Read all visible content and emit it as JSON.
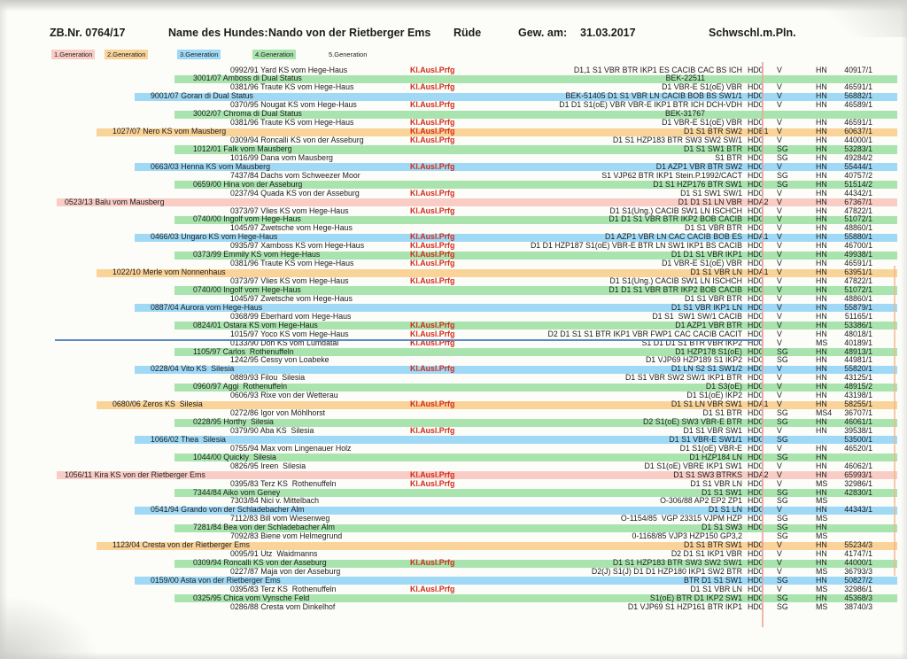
{
  "header": {
    "zb": "ZB.Nr. 0764/17",
    "name_label": "Name des Hundes:",
    "dog_name": "Nando von der Rietberger Ems",
    "sex": "Rüde",
    "dob_label": "Gew. am:",
    "dob": "31.03.2017",
    "right_label": "Schwschl.m.Pln."
  },
  "legend": {
    "items": [
      {
        "label": "1.Generation",
        "color": "#f9cdc6"
      },
      {
        "label": "2.Generation",
        "color": "#fad398"
      },
      {
        "label": "3.Generation",
        "color": "#9fd9f6"
      },
      {
        "label": "4.Generation",
        "color": "#a9e4af"
      },
      {
        "label": "5.Generation",
        "color": "none"
      }
    ]
  },
  "kl_label": "Kl.Ausl.Prfg",
  "colors": {
    "gen1": "#f9cdc6",
    "gen2": "#fad398",
    "gen3": "#9fd9f6",
    "gen4": "#a9e4af",
    "red_text": "#d42a18",
    "divider_blue": "#4a7cc0",
    "fold_pink": "#eba9a2"
  },
  "rows": [
    {
      "gen": 5,
      "name": "0992/91 Yard KS vom Hege-Haus",
      "kl": true,
      "title": "D1,1 S1 VBR BTR IKP1 ES CACIB CAC BS ICH",
      "hd": "HD0",
      "grade": "V",
      "org": "HN",
      "num": "40917/1"
    },
    {
      "gen": 4,
      "name": "3001/07 Amboss di Dual Status",
      "kl": false,
      "title": "BEK-22511",
      "pad": true,
      "hd": "",
      "grade": "",
      "org": "",
      "num": ""
    },
    {
      "gen": 5,
      "name": "0381/96 Traute KS vom Hege-Haus",
      "kl": true,
      "title": "D1 VBR-E S1(oE) VBR",
      "hd": "HD0",
      "grade": "V",
      "org": "HN",
      "num": "46591/1"
    },
    {
      "gen": 3,
      "name": "9001/07 Goran di Dual Status",
      "kl": false,
      "title": "BEK-51405 D1 S1 VBR LN CACIB BOB BS SW1/1",
      "hd": "HD0",
      "grade": "V",
      "org": "HN",
      "num": "56882/1"
    },
    {
      "gen": 5,
      "name": "0370/95 Nougat KS vom Hege-Haus",
      "kl": true,
      "title": "D1 D1 S1(oE) VBR VBR-E IKP1 BTR ICH DCH-VDH",
      "hd": "HD0",
      "grade": "V",
      "org": "HN",
      "num": "46589/1"
    },
    {
      "gen": 4,
      "name": "3002/07 Chroma di Dual Status",
      "kl": false,
      "title": "BEK-31767",
      "pad": true,
      "hd": "",
      "grade": "",
      "org": "",
      "num": ""
    },
    {
      "gen": 5,
      "name": "0381/96 Traute KS vom Hege-Haus",
      "kl": true,
      "title": "D1 VBR-E S1(oE) VBR",
      "hd": "HD0",
      "grade": "V",
      "org": "HN",
      "num": "46591/1"
    },
    {
      "gen": 2,
      "name": "1027/07 Nero KS vom Mausberg",
      "kl": true,
      "title": "D1 S1 BTR SW2",
      "hd": "HDB1",
      "grade": "V",
      "org": "HN",
      "num": "60637/1"
    },
    {
      "gen": 5,
      "name": "0309/94 Roncalli KS von der Asseburg",
      "kl": true,
      "title": "D1 S1 HZP183 BTR SW3 SW2 SW/1",
      "hd": "HD0",
      "grade": "V",
      "org": "HN",
      "num": "44000/1"
    },
    {
      "gen": 4,
      "name": "1012/01 Falk vom Mausberg",
      "kl": false,
      "title": "D1 S1 SW1 BTR",
      "hd": "HD0",
      "grade": "SG",
      "org": "HN",
      "num": "53283/1"
    },
    {
      "gen": 5,
      "name": "1016/99 Dana vom Mausberg",
      "kl": false,
      "title": "S1 BTR",
      "hd": "HD0",
      "grade": "SG",
      "org": "HN",
      "num": "49284/2"
    },
    {
      "gen": 3,
      "name": "0663/03 Henna KS vom Mausberg",
      "kl": true,
      "title": "D1 AZP1 VBR BTR SW2",
      "hd": "HD0",
      "grade": "V",
      "org": "HN",
      "num": "55444/1"
    },
    {
      "gen": 5,
      "name": "7437/84 Dachs vom Schweezer Moor",
      "kl": false,
      "title": "S1 VJP62 BTR IKP1 Stein.P.1992/CACT",
      "hd": "HD0",
      "grade": "SG",
      "org": "HN",
      "num": "40757/2"
    },
    {
      "gen": 4,
      "name": "0659/00 Hina von der Asseburg",
      "kl": false,
      "title": "D1 S1 HZP176 BTR SW1",
      "hd": "HD0",
      "grade": "SG",
      "org": "HN",
      "num": "51514/2"
    },
    {
      "gen": 5,
      "name": "0237/94 Quada KS von der Asseburg",
      "kl": true,
      "title": "D1 S1 SW1 SW/1",
      "hd": "HD0",
      "grade": "V",
      "org": "HN",
      "num": "44342/1"
    },
    {
      "gen": 1,
      "name": "0523/13 Balu vom Mausberg",
      "kl": false,
      "title": "D1 D1 S1 LN VBR",
      "hd": "HDA2",
      "grade": "V",
      "org": "HN",
      "num": "67367/1"
    },
    {
      "gen": 5,
      "name": "0373/97 Vlies KS vom Hege-Haus",
      "kl": true,
      "title": "D1 S1(Ung.) CACIB SW1 LN ISCHCH",
      "hd": "HD0",
      "grade": "V",
      "org": "HN",
      "num": "47822/1"
    },
    {
      "gen": 4,
      "name": "0740/00 Ingolf vom Hege-Haus",
      "kl": false,
      "title": "D1 D1 S1 VBR BTR IKP2 BOB CACIB",
      "hd": "HD0",
      "grade": "V",
      "org": "HN",
      "num": "51072/1"
    },
    {
      "gen": 5,
      "name": "1045/97 Zwetsche vom Hege-Haus",
      "kl": false,
      "title": "D1 S1 VBR BTR",
      "hd": "HD0",
      "grade": "V",
      "org": "HN",
      "num": "48860/1"
    },
    {
      "gen": 3,
      "name": "0466/03 Ungaro KS vom Hege-Haus",
      "kl": true,
      "title": "D1 AZP1 VBR LN CAC CACIB BOB ES",
      "hd": "HDA1",
      "grade": "V",
      "org": "HN",
      "num": "55880/1"
    },
    {
      "gen": 5,
      "name": "0935/97 Xamboss KS vom Hege-Haus",
      "kl": true,
      "title": "D1 D1 HZP187 S1(oE) VBR-E BTR LN SW1 IKP1 BS CACIB",
      "hd": "HD0",
      "grade": "V",
      "org": "HN",
      "num": "46700/1"
    },
    {
      "gen": 4,
      "name": "0373/99 Emmily KS vom Hege-Haus",
      "kl": true,
      "title": "D1 D1 S1 VBR IKP1",
      "hd": "HD0",
      "grade": "V",
      "org": "HN",
      "num": "49938/1"
    },
    {
      "gen": 5,
      "name": "0381/96 Traute KS vom Hege-Haus",
      "kl": true,
      "title": "D1 VBR-E S1(oE) VBR",
      "hd": "HD0",
      "grade": "V",
      "org": "HN",
      "num": "46591/1"
    },
    {
      "gen": 2,
      "name": "1022/10 Merle vom Nonnenhaus",
      "kl": false,
      "title": "D1 S1 VBR LN",
      "hd": "HDA1",
      "grade": "V",
      "org": "HN",
      "num": "63951/1"
    },
    {
      "gen": 5,
      "name": "0373/97 Vlies KS vom Hege-Haus",
      "kl": true,
      "title": "D1 S1(Ung.) CACIB SW1 LN ISCHCH",
      "hd": "HD0",
      "grade": "V",
      "org": "HN",
      "num": "47822/1"
    },
    {
      "gen": 4,
      "name": "0740/00 Ingolf vom Hege-Haus",
      "kl": false,
      "title": "D1 D1 S1 VBR BTR IKP2 BOB CACIB",
      "hd": "HD0",
      "grade": "V",
      "org": "HN",
      "num": "51072/1"
    },
    {
      "gen": 5,
      "name": "1045/97 Zwetsche vom Hege-Haus",
      "kl": false,
      "title": "D1 S1 VBR BTR",
      "hd": "HD0",
      "grade": "V",
      "org": "HN",
      "num": "48860/1"
    },
    {
      "gen": 3,
      "name": "0887/04 Aurora vom Hege-Haus",
      "kl": false,
      "title": "D1 S1 VBR IKP1 LN",
      "hd": "HD0",
      "grade": "V",
      "org": "HN",
      "num": "55879/1"
    },
    {
      "gen": 5,
      "name": "0368/99 Eberhard vom Hege-Haus",
      "kl": false,
      "title": "D1 S1  SW1 SW/1 CACIB",
      "hd": "HD0",
      "grade": "V",
      "org": "HN",
      "num": "51165/1"
    },
    {
      "gen": 4,
      "name": "0824/01 Ostara KS vom Hege-Haus",
      "kl": true,
      "title": "D1 AZP1 VBR BTR",
      "hd": "HD0",
      "grade": "V",
      "org": "HN",
      "num": "53386/1"
    },
    {
      "gen": 5,
      "name": "1015/97 Yoco KS vom Hege-Haus",
      "kl": true,
      "title": "D2 D1 S1 S1 BTR IKP1 VBR FWP1 CAC CACIB CACIT",
      "hd": "HD0",
      "grade": "V",
      "org": "HN",
      "num": "48018/1"
    },
    {
      "gen": 5,
      "name": "0133/90 Don KS vom Lumdatal",
      "kl": true,
      "title": "S1 D1 D1 S1 BTR VBR IKP2",
      "hd": "HD0",
      "grade": "V",
      "org": "MS",
      "num": "40189/1"
    },
    {
      "gen": 4,
      "name": "1105/97 Carlos  Rothenuffeln",
      "kl": false,
      "title": "D1 HZP178 S1(oE)",
      "hd": "HD0",
      "grade": "SG",
      "org": "HN",
      "num": "48913/1"
    },
    {
      "gen": 5,
      "name": "1242/95 Cessy von Loabeke",
      "kl": false,
      "title": "D1 VJP69 HZP189 S1 IKP2",
      "hd": "HD0",
      "grade": "SG",
      "org": "HN",
      "num": "44981/1"
    },
    {
      "gen": 3,
      "name": "0228/04 Vito KS  Silesia",
      "kl": true,
      "title": "D1 LN S2 S1 SW1/2",
      "hd": "HD0",
      "grade": "V",
      "org": "HN",
      "num": "55820/1"
    },
    {
      "gen": 5,
      "name": "0889/93 Filou  Silesia",
      "kl": false,
      "title": "D1 S1 VBR SW2 SW/1 IKP1 BTR",
      "hd": "HD0",
      "grade": "V",
      "org": "HN",
      "num": "43125/1"
    },
    {
      "gen": 4,
      "name": "0960/97 Aggi  Rothenuffeln",
      "kl": false,
      "title": "D1 S3(oE)",
      "hd": "HD0",
      "grade": "V",
      "org": "HN",
      "num": "48915/2"
    },
    {
      "gen": 5,
      "name": "0606/93 Rixe von der Wetterau",
      "kl": false,
      "title": "D1 S1(oE) IKP2",
      "hd": "HD0",
      "grade": "V",
      "org": "HN",
      "num": "43198/1"
    },
    {
      "gen": 2,
      "name": "0680/06 Zeros KS  Silesia",
      "kl": true,
      "title": "D1 S1 LN VBR SW1",
      "hd": "HDA1",
      "grade": "V",
      "org": "HN",
      "num": "58255/1"
    },
    {
      "gen": 5,
      "name": "0272/86 Igor von Möhlhorst",
      "kl": false,
      "title": "D1 S1 BTR",
      "hd": "HD0",
      "grade": "SG",
      "org": "MS4",
      "num": "36707/1"
    },
    {
      "gen": 4,
      "name": "0228/95 Horthy  Silesia",
      "kl": false,
      "title": "D2 S1(oE) SW3 VBR-E BTR",
      "hd": "HD0",
      "grade": "SG",
      "org": "HN",
      "num": "46061/1"
    },
    {
      "gen": 5,
      "name": "0379/90 Aba KS  Silesia",
      "kl": true,
      "title": "D1 S1 VBR SW1",
      "hd": "HD0",
      "grade": "V",
      "org": "HN",
      "num": "39538/1"
    },
    {
      "gen": 3,
      "name": "1066/02 Thea  Silesia",
      "kl": false,
      "title": "D1 S1 VBR-E SW1/1",
      "hd": "HD0",
      "grade": "SG",
      "org": "",
      "num": "53500/1"
    },
    {
      "gen": 5,
      "name": "0755/94 Max vom Lingenauer Holz",
      "kl": false,
      "title": "D1 S1(oE) VBR-E",
      "hd": "HD0",
      "grade": "V",
      "org": "HN",
      "num": "46520/1"
    },
    {
      "gen": 4,
      "name": "1044/00 Quickly  Silesia",
      "kl": false,
      "title": "D1 HZP184 LN",
      "hd": "HD0",
      "grade": "SG",
      "org": "HN",
      "num": ""
    },
    {
      "gen": 5,
      "name": "0826/95 Ireen  Silesia",
      "kl": false,
      "title": "D1 S1(oE) VBRE IKP1 SW1",
      "hd": "HD0",
      "grade": "V",
      "org": "HN",
      "num": "46062/1"
    },
    {
      "gen": 1,
      "name": "1056/11 Kira KS von der Rietberger Ems",
      "kl": true,
      "title": "D1 S1 SW3 BTRKS",
      "hd": "HDA2",
      "grade": "V",
      "org": "HN",
      "num": "65993/1"
    },
    {
      "gen": 5,
      "name": "0395/83 Terz KS  Rothenuffeln",
      "kl": true,
      "title": "D1 S1 VBR LN",
      "hd": "HD0",
      "grade": "V",
      "org": "MS",
      "num": "32986/1"
    },
    {
      "gen": 4,
      "name": "7344/84 Aiko vom Geney",
      "kl": false,
      "title": "D1 S1 SW1",
      "hd": "HD0",
      "grade": "SG",
      "org": "HN",
      "num": "42830/1"
    },
    {
      "gen": 5,
      "name": "7303/84 Nici v. Mittelbach",
      "kl": false,
      "title": "O-306/88 AP2 EP2 ZP1",
      "hd": "HD0",
      "grade": "SG",
      "org": "MS",
      "num": ""
    },
    {
      "gen": 3,
      "name": "0541/94 Grando von der Schladebacher Alm",
      "kl": false,
      "title": "D1 S1 LN",
      "hd": "HD0",
      "grade": "V",
      "org": "HN",
      "num": "44343/1"
    },
    {
      "gen": 5,
      "name": "7112/83 Bill vom Wiesenweg",
      "kl": false,
      "title": "O-1154/85  VGP 23315 VJPM HZP",
      "hd": "HD0",
      "grade": "SG",
      "org": "MS",
      "num": ""
    },
    {
      "gen": 4,
      "name": "7281/84 Bea von der Schladebacher Alm",
      "kl": false,
      "title": "D1 S1 SW3",
      "hd": "HD0",
      "grade": "SG",
      "org": "HN",
      "num": ""
    },
    {
      "gen": 5,
      "name": "7092/83 Biene vom Helmegrund",
      "kl": false,
      "title": "0-1168/85 VJP3 HZP150 GP3,2",
      "hd": "",
      "grade": "SG",
      "org": "MS",
      "num": ""
    },
    {
      "gen": 2,
      "name": "1123/04 Cresta von der Rietberger Ems",
      "kl": false,
      "title": "D1 S1 BTR SW1",
      "hd": "HD0",
      "grade": "V",
      "org": "HN",
      "num": "55234/3"
    },
    {
      "gen": 5,
      "name": "0095/91 Utz  Waidmanns",
      "kl": false,
      "title": "D2 D1 S1 IKP1 VBR",
      "hd": "HD0",
      "grade": "V",
      "org": "HN",
      "num": "41747/1"
    },
    {
      "gen": 4,
      "name": "0309/94 Roncalli KS von der Asseburg",
      "kl": true,
      "title": "D1 S1 HZP183 BTR SW3 SW2 SW/1",
      "hd": "HD0",
      "grade": "V",
      "org": "HN",
      "num": "44000/1"
    },
    {
      "gen": 5,
      "name": "0227/87 Maja von der Asseburg",
      "kl": false,
      "title": "D2(J) S1(J) D1 D1 HZP180 IKP1 SW2 BTR",
      "hd": "HD0",
      "grade": "V",
      "org": "MS",
      "num": "36793/3"
    },
    {
      "gen": 3,
      "name": "0159/00 Asta von der Rietberger Ems",
      "kl": false,
      "title": "BTR D1 S1 SW1",
      "hd": "HD0",
      "grade": "SG",
      "org": "HN",
      "num": "50827/2"
    },
    {
      "gen": 5,
      "name": "0395/83 Terz KS  Rothenuffeln",
      "kl": true,
      "title": "D1 S1 VBR LN",
      "hd": "HD0",
      "grade": "V",
      "org": "MS",
      "num": "32986/1"
    },
    {
      "gen": 4,
      "name": "0325/95 Chica vom Vynsche Feld",
      "kl": false,
      "title": "S1(oE) BTR D1 IKP2 SW1",
      "hd": "HD0",
      "grade": "SG",
      "org": "HN",
      "num": "45368/3"
    },
    {
      "gen": 5,
      "name": "0286/88 Cresta vom Dinkelhof",
      "kl": false,
      "title": "D1 VJP69 S1 HZP161 BTR IKP1",
      "hd": "HD0",
      "grade": "SG",
      "org": "MS",
      "num": "38740/3"
    }
  ]
}
